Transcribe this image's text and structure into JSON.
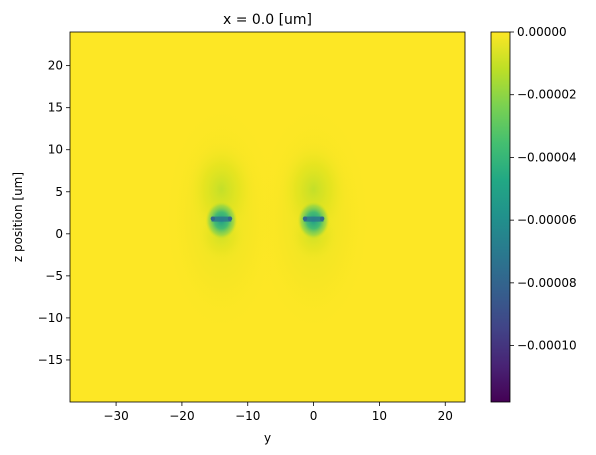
{
  "chart_data": {
    "type": "heatmap",
    "title": "x = 0.0 [um]",
    "xlabel": "y",
    "ylabel": "z position [um]",
    "xlim": [
      -37,
      23
    ],
    "ylim": [
      -20,
      24
    ],
    "x_ticks": [
      -30,
      -20,
      -10,
      0,
      10,
      20
    ],
    "y_ticks": [
      -15,
      -10,
      -5,
      0,
      5,
      10,
      15,
      20
    ],
    "colormap": "viridis",
    "color_range": [
      -0.000118,
      0.0
    ],
    "colorbar_ticks": [
      {
        "value": 0.0,
        "label": "0.00000"
      },
      {
        "value": -2e-05,
        "label": "−0.00002"
      },
      {
        "value": -4e-05,
        "label": "−0.00004"
      },
      {
        "value": -6e-05,
        "label": "−0.00006"
      },
      {
        "value": -8e-05,
        "label": "−0.00008"
      },
      {
        "value": -0.0001,
        "label": "−0.00010"
      }
    ],
    "features": [
      {
        "center_y": -14.0,
        "center_z": 1.8,
        "peak_value": -0.0001
      },
      {
        "center_y": 0.0,
        "center_z": 1.8,
        "peak_value": -0.0001
      }
    ],
    "background_value": 0.0
  }
}
